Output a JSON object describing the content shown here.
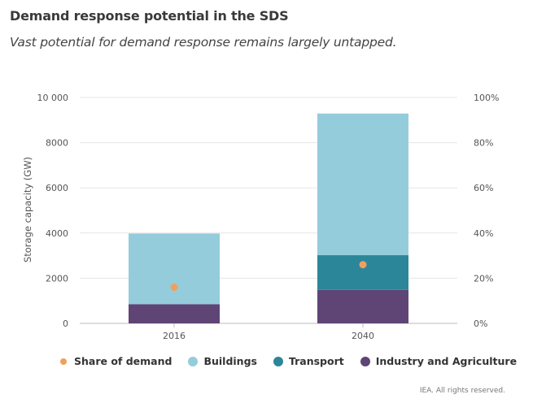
{
  "title": "Demand response potential in the SDS",
  "subtitle": "Vast potential for demand response remains largely untapped.",
  "footer": "IEA. All rights reserved.",
  "chart_data": {
    "type": "bar",
    "stacked": true,
    "categories": [
      "2016",
      "2040"
    ],
    "ylabel": "Storage capacity (GW)",
    "ylim": [
      0,
      10000
    ],
    "y_ticks": [
      "0",
      "2000",
      "4000",
      "6000",
      "8000",
      "10 000"
    ],
    "y2lim": [
      0,
      100
    ],
    "y2_ticks": [
      "0%",
      "20%",
      "40%",
      "60%",
      "80%",
      "100%"
    ],
    "grid": true,
    "legend_position": "bottom",
    "series": [
      {
        "name": "Industry and Agriculture",
        "values": [
          850,
          1480
        ],
        "color": "#5e4575"
      },
      {
        "name": "Transport",
        "values": [
          0,
          1540
        ],
        "color": "#2c8699"
      },
      {
        "name": "Buildings",
        "values": [
          3130,
          6270
        ],
        "color": "#95ccdc"
      }
    ],
    "line_series": {
      "name": "Share of demand",
      "axis": "right",
      "values": [
        16,
        26
      ],
      "color": "#f0a05c"
    }
  }
}
